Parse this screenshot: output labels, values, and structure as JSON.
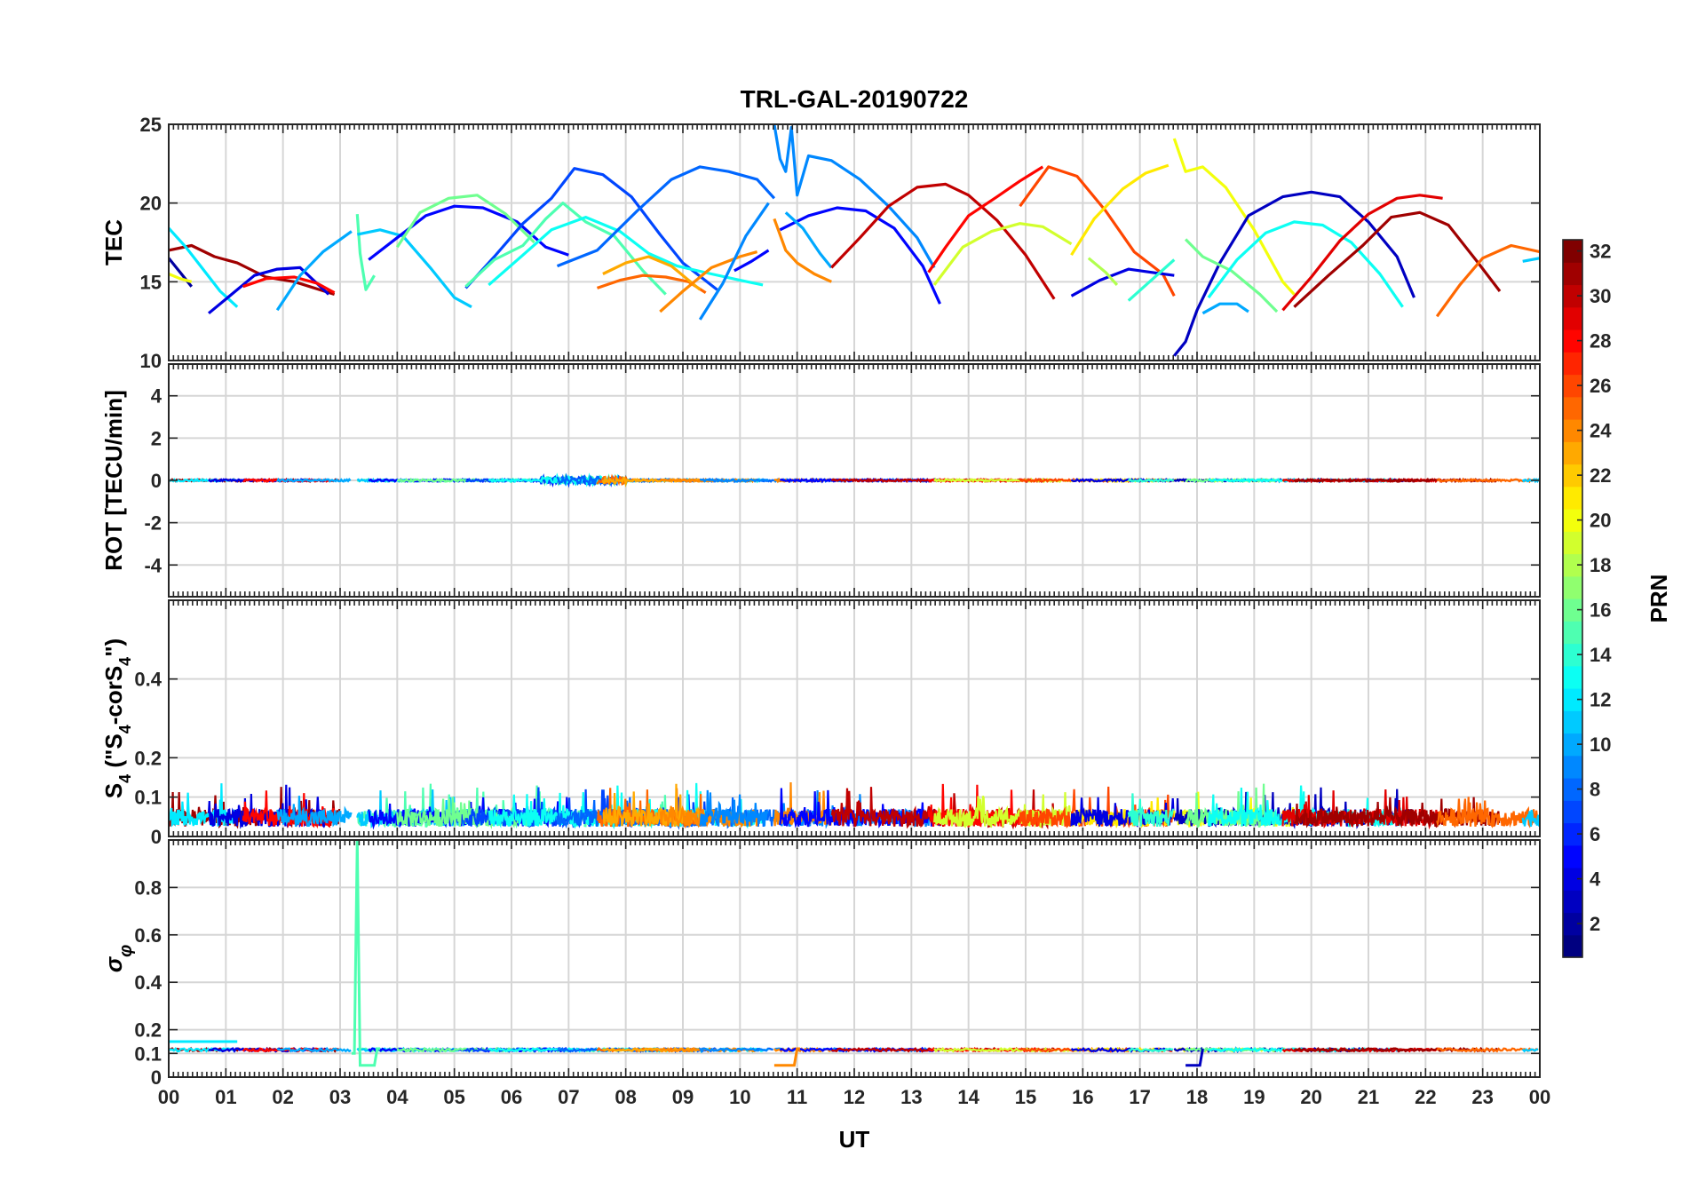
{
  "chart_data": {
    "type": "line",
    "title": "TRL-GAL-20190722",
    "xlabel": "UT",
    "x_tick_labels": [
      "00",
      "01",
      "02",
      "03",
      "04",
      "05",
      "06",
      "07",
      "08",
      "09",
      "10",
      "11",
      "12",
      "13",
      "14",
      "15",
      "16",
      "17",
      "18",
      "19",
      "20",
      "21",
      "22",
      "23",
      "00"
    ],
    "xlim": [
      0,
      24
    ],
    "grid": true,
    "colormap": "jet",
    "colorbar": {
      "label": "PRN",
      "range": [
        1,
        32
      ],
      "ticks": [
        2,
        4,
        6,
        8,
        10,
        12,
        14,
        16,
        18,
        20,
        22,
        24,
        26,
        28,
        30,
        32
      ],
      "placement": "right"
    },
    "panels": [
      {
        "ylabel": "TEC",
        "ylim": [
          10,
          25
        ],
        "yticks": [
          10,
          15,
          20,
          25
        ],
        "tracks": [
          {
            "prn": 31,
            "x": [
              0.0,
              0.4,
              0.8,
              1.2,
              1.7,
              2.2,
              2.9
            ],
            "y": [
              17.0,
              17.3,
              16.6,
              16.2,
              15.3,
              15.0,
              14.2
            ]
          },
          {
            "prn": 2,
            "x": [
              0.0,
              0.2,
              0.4
            ],
            "y": [
              16.5,
              15.6,
              14.7
            ]
          },
          {
            "prn": 20,
            "x": [
              0.0,
              0.2,
              0.4
            ],
            "y": [
              15.5,
              15.2,
              15.0
            ]
          },
          {
            "prn": 12,
            "x": [
              0.0,
              0.3,
              0.6,
              0.9,
              1.2
            ],
            "y": [
              18.4,
              17.2,
              15.8,
              14.4,
              13.4
            ]
          },
          {
            "prn": 4,
            "x": [
              0.7,
              1.1,
              1.5,
              1.9,
              2.3,
              2.8
            ],
            "y": [
              13.0,
              14.2,
              15.4,
              15.8,
              15.9,
              14.2
            ]
          },
          {
            "prn": 28,
            "x": [
              1.3,
              1.7,
              2.2,
              2.6,
              2.9
            ],
            "y": [
              14.7,
              15.2,
              15.3,
              14.9,
              14.3
            ]
          },
          {
            "prn": 10,
            "x": [
              1.9,
              2.3,
              2.7,
              3.2
            ],
            "y": [
              13.2,
              15.4,
              16.9,
              18.2
            ]
          },
          {
            "prn": 15,
            "x": [
              3.3,
              3.35,
              3.45,
              3.6
            ],
            "y": [
              19.3,
              16.8,
              14.5,
              15.4
            ]
          },
          {
            "prn": 11,
            "x": [
              3.3,
              3.7,
              4.1,
              4.6,
              5.0,
              5.3
            ],
            "y": [
              18.0,
              18.3,
              17.9,
              15.8,
              14.0,
              13.4
            ]
          },
          {
            "prn": 5,
            "x": [
              3.5,
              4.0,
              4.5,
              5.0,
              5.5,
              6.1,
              6.6,
              7.0
            ],
            "y": [
              16.4,
              17.8,
              19.2,
              19.8,
              19.7,
              18.8,
              17.2,
              16.7
            ]
          },
          {
            "prn": 16,
            "x": [
              4.0,
              4.4,
              4.9,
              5.4,
              5.9,
              6.4
            ],
            "y": [
              17.2,
              19.4,
              20.3,
              20.5,
              19.3,
              17.5
            ]
          },
          {
            "prn": 7,
            "x": [
              5.2,
              5.7,
              6.2,
              6.7,
              7.1,
              7.6,
              8.1,
              8.6,
              9.0,
              9.6
            ],
            "y": [
              14.6,
              16.6,
              18.7,
              20.3,
              22.2,
              21.8,
              20.4,
              18.0,
              16.2,
              14.5
            ]
          },
          {
            "prn": 15,
            "x": [
              5.2,
              5.7,
              6.2,
              6.6,
              6.9,
              7.3,
              7.8,
              8.3,
              8.7
            ],
            "y": [
              14.7,
              16.4,
              17.3,
              19.0,
              20.0,
              18.8,
              17.9,
              15.7,
              14.2
            ]
          },
          {
            "prn": 13,
            "x": [
              5.6,
              6.2,
              6.7,
              7.3,
              7.9,
              8.4,
              8.9,
              9.5,
              10.0,
              10.4
            ],
            "y": [
              14.8,
              16.7,
              18.3,
              19.1,
              18.2,
              16.8,
              16.0,
              15.5,
              15.1,
              14.8
            ]
          },
          {
            "prn": 8,
            "x": [
              6.8,
              7.5,
              8.2,
              8.8,
              9.3,
              9.8,
              10.3,
              10.6
            ],
            "y": [
              16.0,
              17.0,
              19.5,
              21.5,
              22.3,
              22.0,
              21.5,
              20.3
            ]
          },
          {
            "prn": 25,
            "x": [
              7.5,
              7.9,
              8.3,
              8.7,
              9.1,
              9.4
            ],
            "y": [
              14.6,
              15.1,
              15.4,
              15.3,
              15.0,
              14.3
            ]
          },
          {
            "prn": 23,
            "x": [
              7.6,
              8.0,
              8.4,
              8.8,
              9.3
            ],
            "y": [
              15.5,
              16.2,
              16.6,
              16.0,
              14.5
            ]
          },
          {
            "prn": 24,
            "x": [
              8.6,
              9.0,
              9.5,
              10.0,
              10.3
            ],
            "y": [
              13.1,
              14.4,
              15.9,
              16.6,
              16.9
            ]
          },
          {
            "prn": 9,
            "x": [
              9.3,
              9.7,
              10.1,
              10.5
            ],
            "y": [
              12.6,
              14.9,
              17.9,
              20.0
            ]
          },
          {
            "prn": 5,
            "x": [
              9.9,
              10.2,
              10.5
            ],
            "y": [
              15.7,
              16.3,
              17.0
            ]
          },
          {
            "prn": 9,
            "x": [
              10.6,
              10.7,
              10.8,
              10.9,
              11.0,
              11.2,
              11.6,
              12.1,
              12.6,
              13.1,
              13.4
            ],
            "y": [
              25.0,
              22.8,
              22.0,
              24.8,
              20.5,
              23.0,
              22.7,
              21.5,
              19.8,
              17.8,
              15.9
            ]
          },
          {
            "prn": 24,
            "x": [
              10.6,
              10.8,
              11.0,
              11.3,
              11.6
            ],
            "y": [
              19.0,
              17.0,
              16.2,
              15.5,
              15.0
            ]
          },
          {
            "prn": 5,
            "x": [
              10.7,
              11.2,
              11.7,
              12.2,
              12.7,
              13.2,
              13.5
            ],
            "y": [
              18.3,
              19.2,
              19.7,
              19.5,
              18.4,
              16.0,
              13.6
            ]
          },
          {
            "prn": 10,
            "x": [
              10.8,
              11.1,
              11.4,
              11.6
            ],
            "y": [
              19.4,
              18.4,
              16.8,
              15.9
            ]
          },
          {
            "prn": 30,
            "x": [
              11.6,
              12.1,
              12.6,
              13.1,
              13.6,
              14.0,
              14.5,
              15.0,
              15.5
            ],
            "y": [
              15.9,
              17.8,
              19.8,
              21.0,
              21.2,
              20.5,
              18.9,
              16.7,
              13.9
            ]
          },
          {
            "prn": 28,
            "x": [
              13.3,
              13.6,
              14.0,
              14.5,
              14.9,
              15.3
            ],
            "y": [
              15.6,
              17.2,
              19.2,
              20.4,
              21.4,
              22.3
            ]
          },
          {
            "prn": 19,
            "x": [
              13.4,
              13.9,
              14.4,
              14.9,
              15.3,
              15.8
            ],
            "y": [
              14.8,
              17.2,
              18.2,
              18.7,
              18.5,
              17.4
            ]
          },
          {
            "prn": 26,
            "x": [
              14.9,
              15.4,
              15.9,
              16.4,
              16.9,
              17.4,
              17.6
            ],
            "y": [
              19.8,
              22.3,
              21.7,
              19.5,
              16.9,
              15.5,
              14.1
            ]
          },
          {
            "prn": 21,
            "x": [
              15.8,
              16.2,
              16.7,
              17.1,
              17.5
            ],
            "y": [
              16.7,
              19.0,
              20.9,
              21.9,
              22.4
            ]
          },
          {
            "prn": 4,
            "x": [
              15.8,
              16.3,
              16.8,
              17.2,
              17.6
            ],
            "y": [
              14.1,
              15.1,
              15.8,
              15.6,
              15.4
            ]
          },
          {
            "prn": 18,
            "x": [
              16.1,
              16.4,
              16.6
            ],
            "y": [
              16.5,
              15.6,
              14.8
            ]
          },
          {
            "prn": 14,
            "x": [
              16.8,
              17.2,
              17.6
            ],
            "y": [
              13.8,
              15.1,
              16.4
            ]
          },
          {
            "prn": 20,
            "x": [
              17.6,
              17.8,
              18.1,
              18.5,
              19.0,
              19.5,
              19.7
            ],
            "y": [
              24.1,
              22.0,
              22.3,
              21.0,
              18.3,
              15.0,
              14.2
            ]
          },
          {
            "prn": 3,
            "x": [
              17.6,
              17.8,
              18.0,
              18.4,
              18.9,
              19.5,
              20.0,
              20.5,
              21.0,
              21.5,
              21.8
            ],
            "y": [
              10.3,
              11.2,
              13.2,
              16.2,
              19.2,
              20.4,
              20.7,
              20.4,
              18.8,
              16.6,
              14.0
            ]
          },
          {
            "prn": 16,
            "x": [
              17.8,
              18.1,
              18.6,
              19.1,
              19.4
            ],
            "y": [
              17.7,
              16.6,
              15.7,
              14.2,
              13.1
            ]
          },
          {
            "prn": 10,
            "x": [
              18.1,
              18.4,
              18.7,
              18.9
            ],
            "y": [
              13.0,
              13.6,
              13.6,
              13.1
            ]
          },
          {
            "prn": 13,
            "x": [
              18.2,
              18.7,
              19.2,
              19.7,
              20.2,
              20.7,
              21.2,
              21.6
            ],
            "y": [
              14.0,
              16.4,
              18.1,
              18.8,
              18.6,
              17.5,
              15.5,
              13.4
            ]
          },
          {
            "prn": 29,
            "x": [
              19.5,
              20.0,
              20.5,
              21.0,
              21.5,
              21.9,
              22.3
            ],
            "y": [
              13.2,
              15.3,
              17.6,
              19.3,
              20.3,
              20.5,
              20.3
            ]
          },
          {
            "prn": 31,
            "x": [
              19.7,
              20.3,
              20.9,
              21.4,
              21.9,
              22.4,
              22.9,
              23.3
            ],
            "y": [
              13.4,
              15.4,
              17.3,
              19.1,
              19.4,
              18.6,
              16.3,
              14.4
            ]
          },
          {
            "prn": 25,
            "x": [
              22.2,
              22.6,
              23.0,
              23.5,
              24.0
            ],
            "y": [
              12.8,
              14.8,
              16.5,
              17.3,
              16.9
            ]
          },
          {
            "prn": 11,
            "x": [
              23.7,
              24.0
            ],
            "y": [
              16.3,
              16.5
            ]
          }
        ]
      },
      {
        "ylabel": "ROT [TECU/min]",
        "ylim": [
          -5.5,
          5.5
        ],
        "yticks": [
          -4,
          -2,
          0,
          2,
          4
        ]
      },
      {
        "ylabel": "S4 (\"S4-corS4\")",
        "ylim": [
          0,
          0.6
        ],
        "yticks": [
          0,
          0.1,
          0.2,
          0.4
        ]
      },
      {
        "ylabel": "σφ",
        "ylim": [
          0,
          1
        ],
        "yticks": [
          0,
          0.1,
          0.2,
          0.4,
          0.6,
          0.8
        ]
      }
    ],
    "segments": [
      {
        "prn": 31,
        "start": 0.0,
        "end": 3.0
      },
      {
        "prn": 12,
        "start": 0.0,
        "end": 1.2
      },
      {
        "prn": 4,
        "start": 0.7,
        "end": 2.8
      },
      {
        "prn": 28,
        "start": 1.3,
        "end": 2.9
      },
      {
        "prn": 10,
        "start": 1.9,
        "end": 3.2
      },
      {
        "prn": 15,
        "start": 3.3,
        "end": 8.7
      },
      {
        "prn": 11,
        "start": 3.3,
        "end": 5.3
      },
      {
        "prn": 5,
        "start": 3.5,
        "end": 7.0
      },
      {
        "prn": 16,
        "start": 4.0,
        "end": 6.4
      },
      {
        "prn": 7,
        "start": 5.2,
        "end": 9.6
      },
      {
        "prn": 13,
        "start": 5.6,
        "end": 10.4
      },
      {
        "prn": 8,
        "start": 6.8,
        "end": 10.6
      },
      {
        "prn": 25,
        "start": 7.5,
        "end": 9.4
      },
      {
        "prn": 23,
        "start": 7.6,
        "end": 9.3
      },
      {
        "prn": 24,
        "start": 8.6,
        "end": 10.3
      },
      {
        "prn": 9,
        "start": 9.3,
        "end": 10.5
      },
      {
        "prn": 9,
        "start": 10.6,
        "end": 13.4
      },
      {
        "prn": 24,
        "start": 10.6,
        "end": 11.6
      },
      {
        "prn": 5,
        "start": 10.7,
        "end": 13.5
      },
      {
        "prn": 30,
        "start": 11.6,
        "end": 15.5
      },
      {
        "prn": 28,
        "start": 13.3,
        "end": 15.3
      },
      {
        "prn": 19,
        "start": 13.4,
        "end": 15.8
      },
      {
        "prn": 26,
        "start": 14.9,
        "end": 17.6
      },
      {
        "prn": 21,
        "start": 15.8,
        "end": 17.5
      },
      {
        "prn": 4,
        "start": 15.8,
        "end": 17.6
      },
      {
        "prn": 14,
        "start": 16.8,
        "end": 17.6
      },
      {
        "prn": 20,
        "start": 17.6,
        "end": 19.7
      },
      {
        "prn": 3,
        "start": 17.6,
        "end": 21.8
      },
      {
        "prn": 16,
        "start": 17.8,
        "end": 19.4
      },
      {
        "prn": 13,
        "start": 18.2,
        "end": 21.6
      },
      {
        "prn": 29,
        "start": 19.5,
        "end": 22.3
      },
      {
        "prn": 31,
        "start": 19.7,
        "end": 23.3
      },
      {
        "prn": 25,
        "start": 22.2,
        "end": 24.0
      },
      {
        "prn": 11,
        "start": 23.7,
        "end": 24.0
      }
    ],
    "sigma_phi_features": [
      {
        "prn": 15,
        "x": [
          3.2,
          3.25,
          3.3,
          3.35,
          3.6,
          3.65,
          3.7
        ],
        "y": [
          0.1,
          0.1,
          1.0,
          0.05,
          0.05,
          0.12,
          0.12
        ]
      },
      {
        "prn": 24,
        "x": [
          10.6,
          10.95,
          11.0,
          11.05
        ],
        "y": [
          0.05,
          0.05,
          0.12,
          0.12
        ]
      },
      {
        "prn": 3,
        "x": [
          17.8,
          18.05,
          18.1
        ],
        "y": [
          0.05,
          0.05,
          0.12
        ]
      },
      {
        "prn": 12,
        "x": [
          0.0,
          1.2
        ],
        "y": [
          0.15,
          0.15
        ]
      }
    ]
  }
}
